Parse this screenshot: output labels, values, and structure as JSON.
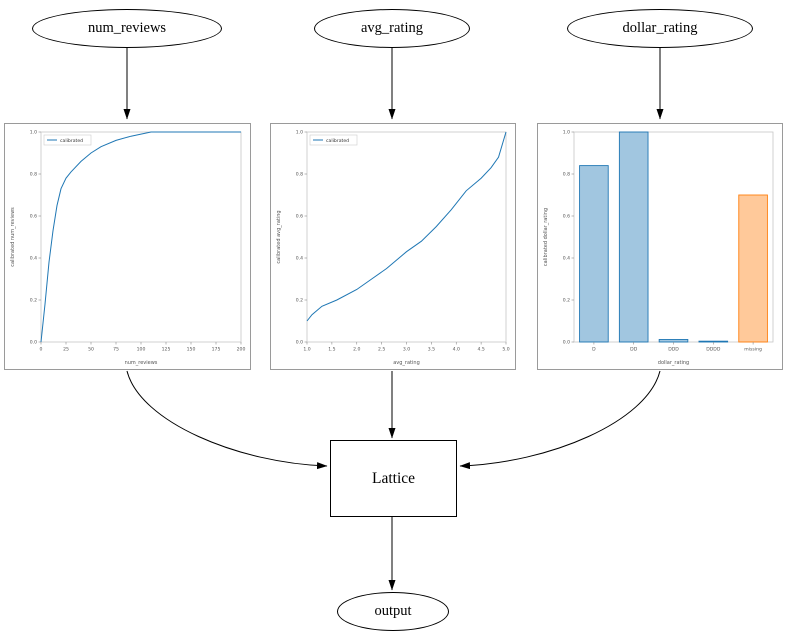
{
  "nodes": {
    "num_reviews": {
      "label": "num_reviews"
    },
    "avg_rating": {
      "label": "avg_rating"
    },
    "dollar_rating": {
      "label": "dollar_rating"
    },
    "lattice": {
      "label": "Lattice"
    },
    "output": {
      "label": "output"
    }
  },
  "colors": {
    "line_blue": "#1f77b4",
    "bar_blue": "#1f77b4",
    "bar_orange": "#ff7f0e",
    "edge_black": "#000000"
  },
  "chart_data": [
    {
      "type": "line",
      "title": "",
      "legend": "calibrated",
      "xlabel": "num_reviews",
      "ylabel": "calibrated num_reviews",
      "xlim": [
        0,
        200
      ],
      "ylim": [
        0.0,
        1.0
      ],
      "xticks": [
        0,
        25,
        50,
        75,
        100,
        125,
        150,
        175,
        200
      ],
      "xtick_labels": [
        "0",
        "25",
        "50",
        "75",
        "100",
        "125",
        "150",
        "175",
        "200"
      ],
      "yticks": [
        0.0,
        0.2,
        0.4,
        0.6,
        0.8,
        1.0
      ],
      "ytick_labels": [
        "0.0",
        "0.2",
        "0.4",
        "0.6",
        "0.8",
        "1.0"
      ],
      "x": [
        0,
        4,
        8,
        12,
        16,
        20,
        25,
        30,
        40,
        50,
        60,
        75,
        90,
        100,
        110,
        125,
        150,
        175,
        200
      ],
      "y": [
        0.0,
        0.18,
        0.38,
        0.53,
        0.65,
        0.73,
        0.78,
        0.81,
        0.86,
        0.9,
        0.93,
        0.96,
        0.98,
        0.99,
        1.0,
        1.0,
        1.0,
        1.0,
        1.0
      ],
      "color": "#1f77b4"
    },
    {
      "type": "line",
      "title": "",
      "legend": "calibrated",
      "xlabel": "avg_rating",
      "ylabel": "calibrated avg_rating",
      "xlim": [
        1.0,
        5.0
      ],
      "ylim": [
        0.0,
        1.0
      ],
      "xticks": [
        1.0,
        1.5,
        2.0,
        2.5,
        3.0,
        3.5,
        4.0,
        4.5,
        5.0
      ],
      "xtick_labels": [
        "1.0",
        "1.5",
        "2.0",
        "2.5",
        "3.0",
        "3.5",
        "4.0",
        "4.5",
        "5.0"
      ],
      "yticks": [
        0.0,
        0.2,
        0.4,
        0.6,
        0.8,
        1.0
      ],
      "ytick_labels": [
        "0.0",
        "0.2",
        "0.4",
        "0.6",
        "0.8",
        "1.0"
      ],
      "x": [
        1.0,
        1.1,
        1.3,
        1.6,
        2.0,
        2.3,
        2.6,
        3.0,
        3.3,
        3.6,
        3.9,
        4.2,
        4.5,
        4.7,
        4.85,
        5.0
      ],
      "y": [
        0.1,
        0.13,
        0.17,
        0.2,
        0.25,
        0.3,
        0.35,
        0.43,
        0.48,
        0.55,
        0.63,
        0.72,
        0.78,
        0.83,
        0.88,
        1.0
      ],
      "color": "#1f77b4"
    },
    {
      "type": "bar",
      "title": "",
      "xlabel": "dollar_rating",
      "ylabel": "calibrated dollar_rating",
      "ylim": [
        0.0,
        1.0
      ],
      "yticks": [
        0.0,
        0.2,
        0.4,
        0.6,
        0.8,
        1.0
      ],
      "ytick_labels": [
        "0.0",
        "0.2",
        "0.4",
        "0.6",
        "0.8",
        "1.0"
      ],
      "categories": [
        "D",
        "DD",
        "DDD",
        "DDDD",
        "missing"
      ],
      "values": [
        0.84,
        1.0,
        0.012,
        0.004,
        0.7
      ],
      "bar_colors": [
        "#1f77b4",
        "#1f77b4",
        "#1f77b4",
        "#1f77b4",
        "#ff7f0e"
      ]
    }
  ]
}
